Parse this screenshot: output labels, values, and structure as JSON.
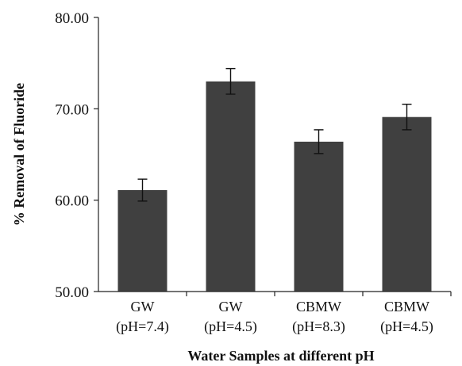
{
  "chart_data": {
    "type": "bar",
    "title": "",
    "xlabel": "Water Samples at different pH",
    "ylabel": "% Removal of Fluoride",
    "ylim": [
      50,
      80
    ],
    "yticks": [
      "50.00",
      "60.00",
      "70.00",
      "80.00"
    ],
    "grid": false,
    "categories": [
      {
        "line1": "GW",
        "line2": "(pH=7.4)"
      },
      {
        "line1": "GW",
        "line2": "(pH=4.5)"
      },
      {
        "line1": "CBMW",
        "line2": "(pH=8.3)"
      },
      {
        "line1": "CBMW",
        "line2": "(pH=4.5)"
      }
    ],
    "values": [
      61.1,
      73.0,
      66.4,
      69.1
    ],
    "errors": [
      1.2,
      1.4,
      1.3,
      1.4
    ],
    "bar_color": "#404040"
  }
}
